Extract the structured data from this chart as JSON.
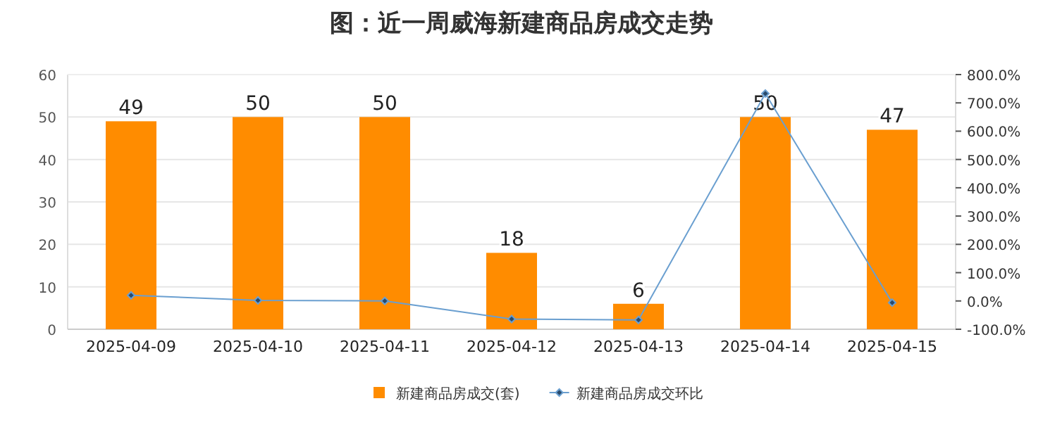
{
  "chart_data": {
    "type": "bar",
    "title": "图：近一周威海新建商品房成交走势",
    "categories": [
      "2025-04-09",
      "2025-04-10",
      "2025-04-11",
      "2025-04-12",
      "2025-04-13",
      "2025-04-14",
      "2025-04-15"
    ],
    "series": [
      {
        "name": "新建商品房成交(套)",
        "type": "bar",
        "color": "#ff8c00",
        "values": [
          49,
          50,
          50,
          18,
          6,
          50,
          47
        ],
        "value_labels": [
          "49",
          "50",
          "50",
          "18",
          "6",
          "50",
          "47"
        ]
      },
      {
        "name": "新建商品房成交环比",
        "type": "line",
        "axis": "y2",
        "color": "#6a9fd0",
        "marker": "diamond",
        "values": [
          20,
          2,
          0,
          -64,
          -67,
          733,
          -6
        ]
      }
    ],
    "ylim": [
      0,
      60
    ],
    "yticks": [
      0,
      10,
      20,
      30,
      40,
      50,
      60
    ],
    "y2lim": [
      -100,
      800
    ],
    "y2ticks": [
      {
        "value": -100,
        "label": "-100.0%"
      },
      {
        "value": 0,
        "label": "0.0%"
      },
      {
        "value": 100,
        "label": "100.0%"
      },
      {
        "value": 200,
        "label": "200.0%"
      },
      {
        "value": 300,
        "label": "300.0%"
      },
      {
        "value": 400,
        "label": "400.0%"
      },
      {
        "value": 500,
        "label": "500.0%"
      },
      {
        "value": 600,
        "label": "600.0%"
      },
      {
        "value": 700,
        "label": "700.0%"
      },
      {
        "value": 800,
        "label": "800.0%"
      }
    ],
    "grid": "y",
    "legend": "bottom"
  }
}
